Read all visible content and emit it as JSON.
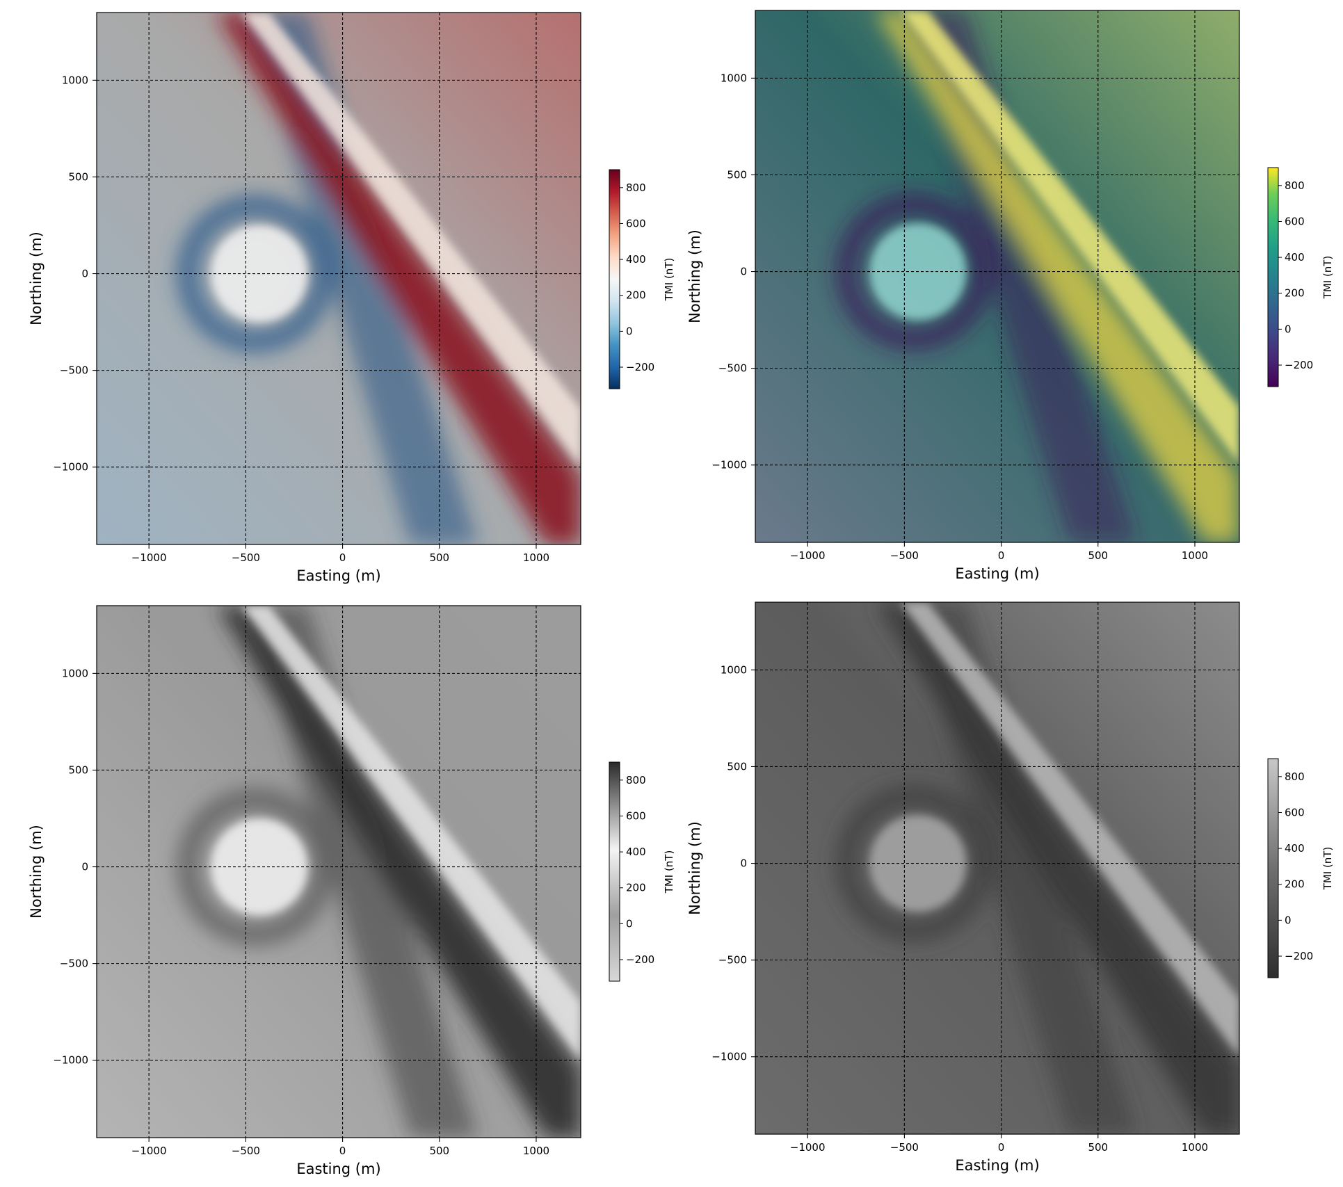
{
  "chart_data": [
    {
      "type": "heatmap",
      "colormap": "RdBu_r",
      "title": "",
      "xlabel": "Easting (m)",
      "ylabel": "Northing (m)",
      "colorbar_label": "TMI (nT)",
      "xlim": [
        -1270,
        1230
      ],
      "ylim": [
        -1400,
        1350
      ],
      "clim": [
        -320,
        900
      ],
      "xticks": [
        -1000,
        -500,
        0,
        500,
        1000
      ],
      "yticks": [
        -1000,
        -500,
        0,
        500,
        1000
      ],
      "cbar_ticks": [
        -200,
        0,
        200,
        400,
        600,
        800
      ],
      "tick_labels_x": [
        "−1000",
        "−500",
        "0",
        "500",
        "1000"
      ],
      "tick_labels_y": [
        "−1000",
        "−500",
        "0",
        "500",
        "1000"
      ],
      "cbar_tick_labels": [
        "−200",
        "0",
        "200",
        "400",
        "600",
        "800"
      ],
      "grid": true,
      "hillshade": false,
      "features": "Dipolar circular anomaly centred near (-450, 0) and a NW-SE trending dyke (high) from (-650, 1350) to (1230, -1000)"
    },
    {
      "type": "heatmap",
      "colormap": "viridis",
      "title": "",
      "xlabel": "Easting (m)",
      "ylabel": "Northing (m)",
      "colorbar_label": "TMI (nT)",
      "xlim": [
        -1270,
        1230
      ],
      "ylim": [
        -1400,
        1350
      ],
      "clim": [
        -320,
        900
      ],
      "xticks": [
        -1000,
        -500,
        0,
        500,
        1000
      ],
      "yticks": [
        -1000,
        -500,
        0,
        500,
        1000
      ],
      "cbar_ticks": [
        -200,
        0,
        200,
        400,
        600,
        800
      ],
      "tick_labels_x": [
        "−1000",
        "−500",
        "0",
        "500",
        "1000"
      ],
      "tick_labels_y": [
        "−1000",
        "−500",
        "0",
        "500",
        "1000"
      ],
      "cbar_tick_labels": [
        "−200",
        "0",
        "200",
        "400",
        "600",
        "800"
      ],
      "grid": true,
      "hillshade": true,
      "features": "Same TMI grid with hillshade overlay"
    },
    {
      "type": "heatmap",
      "colormap": "gray_r",
      "title": "",
      "xlabel": "Easting (m)",
      "ylabel": "Northing (m)",
      "colorbar_label": "TMI (nT)",
      "xlim": [
        -1270,
        1230
      ],
      "ylim": [
        -1400,
        1350
      ],
      "clim": [
        -320,
        900
      ],
      "xticks": [
        -1000,
        -500,
        0,
        500,
        1000
      ],
      "yticks": [
        -1000,
        -500,
        0,
        500,
        1000
      ],
      "cbar_ticks": [
        -200,
        0,
        200,
        400,
        600,
        800
      ],
      "tick_labels_x": [
        "−1000",
        "−500",
        "0",
        "500",
        "1000"
      ],
      "tick_labels_y": [
        "−1000",
        "−500",
        "0",
        "500",
        "1000"
      ],
      "cbar_tick_labels": [
        "−200",
        "0",
        "200",
        "400",
        "600",
        "800"
      ],
      "grid": true,
      "hillshade": false,
      "features": "Greyscale rendering of TMI grid"
    },
    {
      "type": "heatmap",
      "colormap": "gray",
      "title": "",
      "xlabel": "Easting (m)",
      "ylabel": "Northing (m)",
      "colorbar_label": "TMI (nT)",
      "xlim": [
        -1270,
        1230
      ],
      "ylim": [
        -1400,
        1350
      ],
      "clim": [
        -320,
        900
      ],
      "xticks": [
        -1000,
        -500,
        0,
        500,
        1000
      ],
      "yticks": [
        -1000,
        -500,
        0,
        500,
        1000
      ],
      "cbar_ticks": [
        -200,
        0,
        200,
        400,
        600,
        800
      ],
      "tick_labels_x": [
        "−1000",
        "−500",
        "0",
        "500",
        "1000"
      ],
      "tick_labels_y": [
        "−1000",
        "−500",
        "0",
        "500",
        "1000"
      ],
      "cbar_tick_labels": [
        "−200",
        "0",
        "200",
        "400",
        "600",
        "800"
      ],
      "grid": true,
      "hillshade": true,
      "features": "Greyscale shaded-relief rendering (low contrast)"
    }
  ]
}
